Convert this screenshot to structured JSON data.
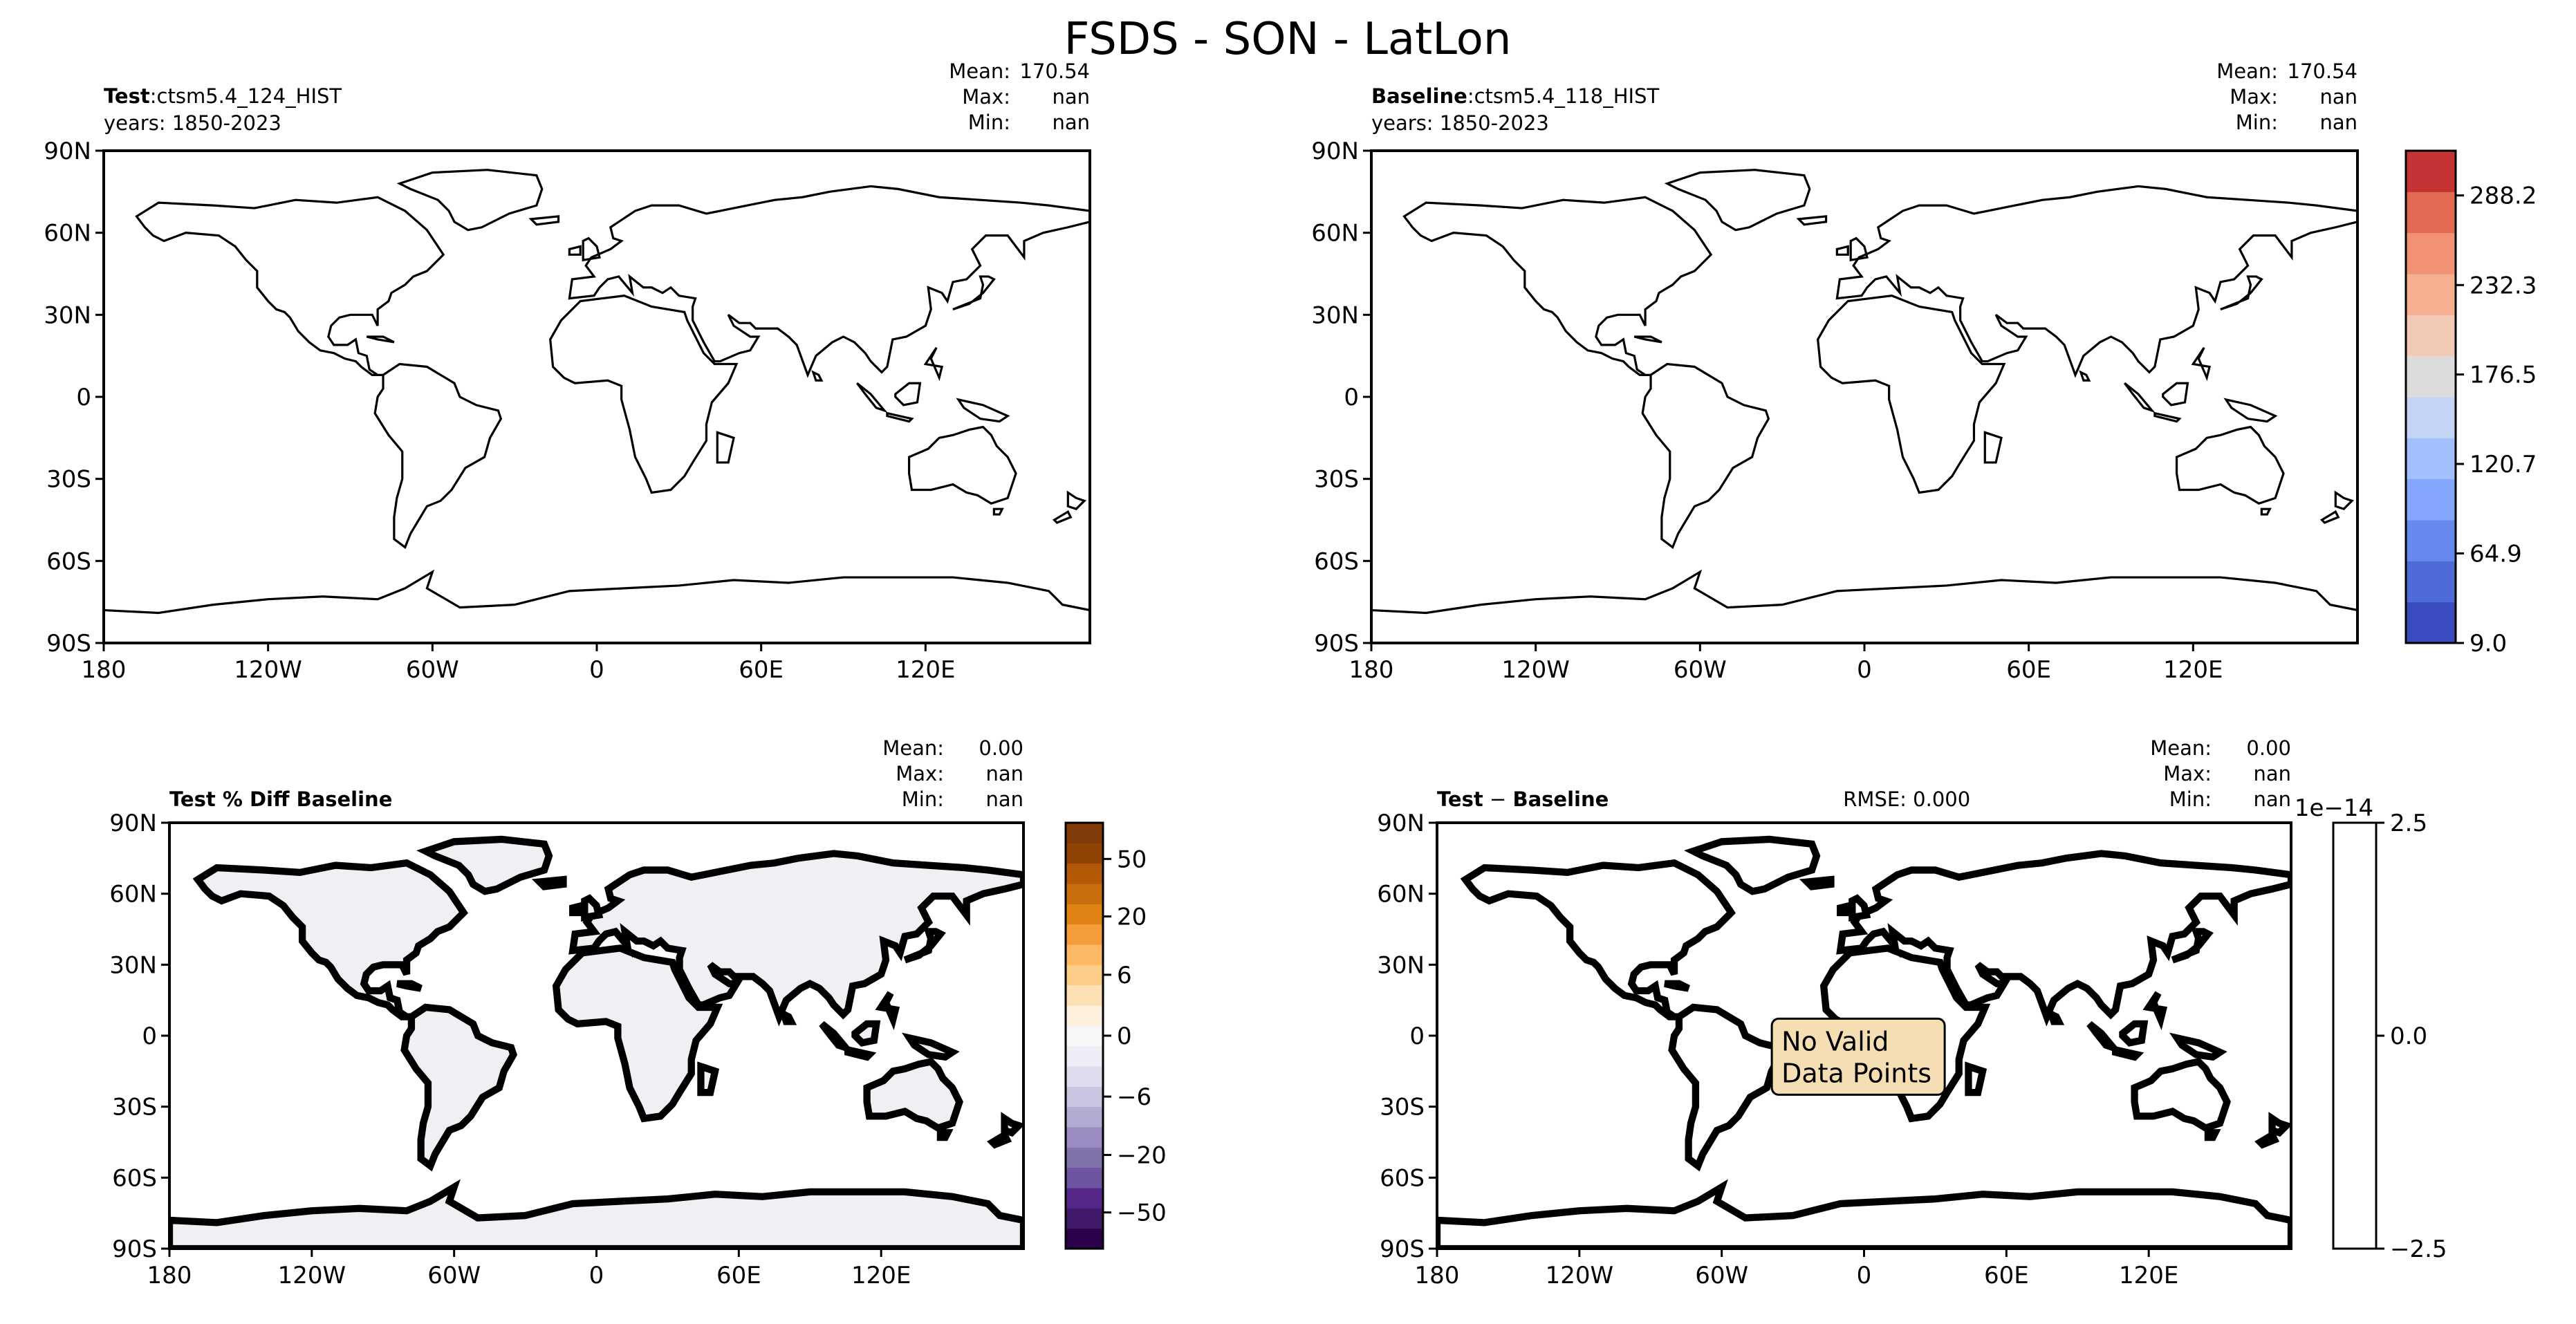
{
  "title": "FSDS - SON - LatLon",
  "chart_data": [
    {
      "type": "heatmap",
      "panel": "test",
      "label_bold": "Test",
      "label_sep": ":",
      "label_text": "ctsm5.4_124_HIST",
      "years": "years: 1850-2023",
      "stats": {
        "mean_label": "Mean:",
        "mean": "170.54",
        "max_label": "Max:",
        "max": "nan",
        "min_label": "Min:",
        "min": "nan"
      },
      "xticks": [
        "180",
        "120W",
        "60W",
        "0",
        "60E",
        "120E"
      ],
      "yticks": [
        "90N",
        "60N",
        "30N",
        "0",
        "30S",
        "60S",
        "90S"
      ],
      "xlim": [
        -180,
        180
      ],
      "ylim": [
        -90,
        90
      ]
    },
    {
      "type": "heatmap",
      "panel": "baseline",
      "label_bold": "Baseline",
      "label_sep": ":",
      "label_text": "ctsm5.4_118_HIST",
      "years": "years: 1850-2023",
      "stats": {
        "mean_label": "Mean:",
        "mean": "170.54",
        "max_label": "Max:",
        "max": "nan",
        "min_label": "Min:",
        "min": "nan"
      },
      "xticks": [
        "180",
        "120W",
        "60W",
        "0",
        "60E",
        "120E"
      ],
      "yticks": [
        "90N",
        "60N",
        "30N",
        "0",
        "30S",
        "60S",
        "90S"
      ],
      "xlim": [
        -180,
        180
      ],
      "ylim": [
        -90,
        90
      ],
      "colorbar": {
        "ticks": [
          "9.0",
          "64.9",
          "120.7",
          "176.5",
          "232.3",
          "288.2"
        ],
        "range": [
          9.0,
          316.1
        ],
        "colors": [
          "#3b4cc0",
          "#4f6bd8",
          "#6788ee",
          "#84a6fb",
          "#a2bffe",
          "#c5d5f5",
          "#dddcdc",
          "#f2cab6",
          "#f7af91",
          "#f29274",
          "#e26952",
          "#c53334"
        ]
      }
    },
    {
      "type": "heatmap",
      "panel": "pct_diff",
      "label_bold": "Test % Diff Baseline",
      "stats": {
        "mean_label": "Mean:",
        "mean": "0.00",
        "max_label": "Max:",
        "max": "nan",
        "min_label": "Min:",
        "min": "nan"
      },
      "xticks": [
        "180",
        "120W",
        "60W",
        "0",
        "60E",
        "120E"
      ],
      "yticks": [
        "90N",
        "60N",
        "30N",
        "0",
        "30S",
        "60S",
        "90S"
      ],
      "xlim": [
        -180,
        180
      ],
      "ylim": [
        -90,
        90
      ],
      "colorbar": {
        "ticks": [
          "50",
          "20",
          "6",
          "0",
          "−6",
          "−20",
          "−50"
        ],
        "colors": [
          "#2d004b",
          "#3f1a6a",
          "#542788",
          "#6e53a0",
          "#8073ac",
          "#9a8cc0",
          "#b2abd2",
          "#cbc5e1",
          "#dfdbec",
          "#eeecf4",
          "#f7f7f7",
          "#fdf0dd",
          "#fee0b6",
          "#fdcd8a",
          "#fdb863",
          "#f59d3b",
          "#e08214",
          "#c96e0c",
          "#b35806",
          "#8f4305",
          "#7f3b08"
        ]
      }
    },
    {
      "type": "heatmap",
      "panel": "diff",
      "label_bold": "Test",
      "label_sep": " − ",
      "label_text": "Baseline",
      "rmse": "RMSE: 0.000",
      "stats": {
        "mean_label": "Mean:",
        "mean": "0.00",
        "max_label": "Max:",
        "max": "nan",
        "min_label": "Min:",
        "min": "nan"
      },
      "no_data_line1": "No Valid",
      "no_data_line2": "Data Points",
      "xticks": [
        "180",
        "120W",
        "60W",
        "0",
        "60E",
        "120E"
      ],
      "yticks": [
        "90N",
        "60N",
        "30N",
        "0",
        "30S",
        "60S",
        "90S"
      ],
      "xlim": [
        -180,
        180
      ],
      "ylim": [
        -90,
        90
      ],
      "colorbar": {
        "ticks": [
          "2.5",
          "0.0",
          "−2.5"
        ],
        "exponent": "1e−14"
      }
    }
  ]
}
